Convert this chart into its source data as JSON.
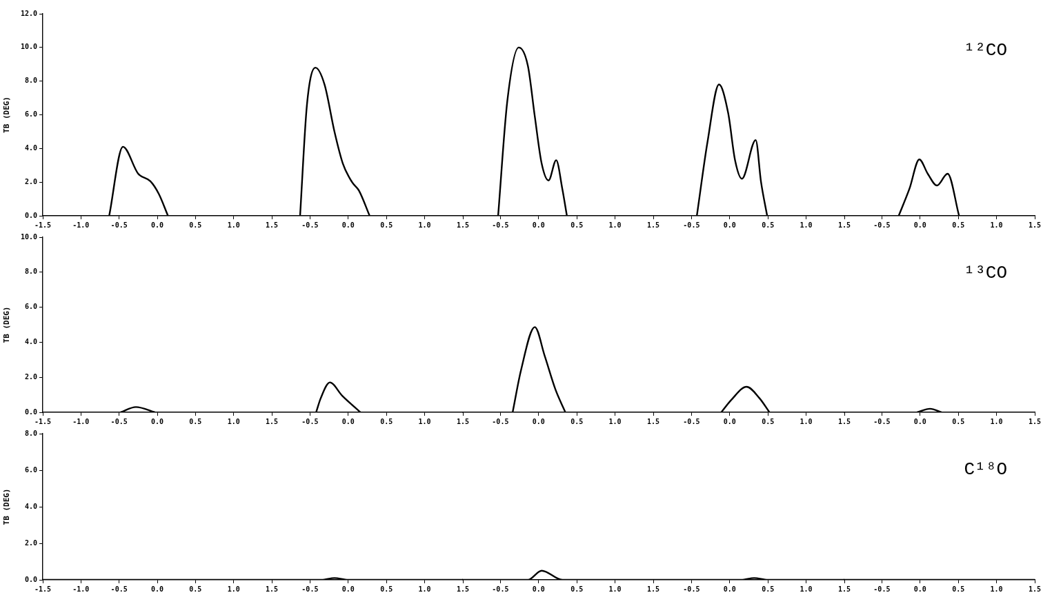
{
  "chart_data": [
    {
      "type": "line",
      "ylabel": "TB (DEG)",
      "xlim": [
        -1.5,
        1.5
      ],
      "ylim": [
        0,
        12
      ],
      "xticks": [
        {
          "value": -1.5,
          "label": "-1.5"
        },
        {
          "value": -1,
          "label": "-1.0"
        },
        {
          "value": -0.5,
          "label": "-0.5"
        },
        {
          "value": 0,
          "label": "0.0"
        },
        {
          "value": 0.5,
          "label": "0.5"
        },
        {
          "value": 1,
          "label": "1.0"
        },
        {
          "value": 1.5,
          "label": "1.5"
        }
      ],
      "yticks": [
        {
          "value": 0,
          "label": "0.0"
        },
        {
          "value": 2,
          "label": "2.0"
        },
        {
          "value": 4,
          "label": "4.0"
        },
        {
          "value": 6,
          "label": "6.0"
        },
        {
          "value": 8,
          "label": "8.0"
        },
        {
          "value": 10,
          "label": "10.0"
        },
        {
          "value": 12,
          "label": "12.0"
        }
      ],
      "series": [
        {
          "color": "#000000",
          "x": [
            -0.63,
            -0.45,
            -0.25,
            -0.09,
            0.02,
            0.14
          ],
          "values": [
            0,
            4.1,
            2.5,
            2.05,
            1.3,
            0
          ]
        }
      ]
    },
    {
      "type": "line",
      "tick_labels": "x",
      "xlim": [
        -1,
        1.5
      ],
      "ylim": [
        0,
        12
      ],
      "xticks": [
        {
          "value": -0.5,
          "label": "-0.5"
        },
        {
          "value": 0,
          "label": "0.0"
        },
        {
          "value": 0.5,
          "label": "0.5"
        },
        {
          "value": 1,
          "label": "1.0"
        },
        {
          "value": 1.5,
          "label": "1.5"
        }
      ],
      "series": [
        {
          "color": "#000000",
          "x": [
            -0.63,
            -0.54,
            -0.43,
            -0.31,
            -0.18,
            -0.07,
            0.05,
            0.14,
            0.28
          ],
          "values": [
            0,
            6.6,
            8.8,
            7.8,
            5.0,
            3.1,
            2.0,
            1.5,
            0
          ]
        }
      ]
    },
    {
      "type": "line",
      "tick_labels": "x",
      "xlim": [
        -1,
        1.5
      ],
      "ylim": [
        0,
        12
      ],
      "xticks": [
        {
          "value": -0.5,
          "label": "-0.5"
        },
        {
          "value": 0,
          "label": "0.0"
        },
        {
          "value": 0.5,
          "label": "0.5"
        },
        {
          "value": 1,
          "label": "1.0"
        },
        {
          "value": 1.5,
          "label": "1.5"
        }
      ],
      "series": [
        {
          "color": "#000000",
          "x": [
            -0.53,
            -0.41,
            -0.26,
            -0.14,
            -0.05,
            0.04,
            0.13,
            0.23,
            0.31,
            0.37
          ],
          "values": [
            0,
            6.8,
            10.0,
            8.9,
            5.9,
            3.1,
            2.1,
            3.3,
            1.6,
            0
          ]
        }
      ]
    },
    {
      "type": "line",
      "tick_labels": "x",
      "xlim": [
        -1,
        1.5
      ],
      "ylim": [
        0,
        12
      ],
      "xticks": [
        {
          "value": -0.5,
          "label": "-0.5"
        },
        {
          "value": 0,
          "label": "0.0"
        },
        {
          "value": 0.5,
          "label": "0.5"
        },
        {
          "value": 1,
          "label": "1.0"
        },
        {
          "value": 1.5,
          "label": "1.5"
        }
      ],
      "series": [
        {
          "color": "#000000",
          "x": [
            -0.43,
            -0.29,
            -0.14,
            -0.02,
            0.07,
            0.16,
            0.34,
            0.41,
            0.49
          ],
          "values": [
            0,
            4.4,
            7.8,
            6.1,
            3.3,
            2.2,
            4.5,
            2.0,
            0
          ]
        }
      ]
    },
    {
      "type": "line",
      "tick_labels": "x",
      "annotations": [
        "¹²CO"
      ],
      "xlim": [
        -1,
        1.5
      ],
      "ylim": [
        0,
        12
      ],
      "xticks": [
        {
          "value": -0.5,
          "label": "-0.5"
        },
        {
          "value": 0,
          "label": "0.0"
        },
        {
          "value": 0.5,
          "label": "0.5"
        },
        {
          "value": 1,
          "label": "1.0"
        },
        {
          "value": 1.5,
          "label": "1.5"
        }
      ],
      "series": [
        {
          "color": "#000000",
          "x": [
            -0.28,
            -0.14,
            -0.01,
            0.1,
            0.22,
            0.36,
            0.51
          ],
          "values": [
            0,
            1.6,
            3.35,
            2.5,
            1.8,
            2.5,
            0
          ]
        }
      ]
    },
    {
      "type": "line",
      "ylabel": "TB (DEG)",
      "xlim": [
        -1.5,
        1.5
      ],
      "ylim": [
        0,
        10
      ],
      "xticks": [
        {
          "value": -1.5,
          "label": "-1.5"
        },
        {
          "value": -1,
          "label": "-1.0"
        },
        {
          "value": -0.5,
          "label": "-0.5"
        },
        {
          "value": 0,
          "label": "0.0"
        },
        {
          "value": 0.5,
          "label": "0.5"
        },
        {
          "value": 1,
          "label": "1.0"
        },
        {
          "value": 1.5,
          "label": "1.5"
        }
      ],
      "yticks": [
        {
          "value": 0,
          "label": "0.0"
        },
        {
          "value": 2,
          "label": "2.0"
        },
        {
          "value": 4,
          "label": "4.0"
        },
        {
          "value": 6,
          "label": "6.0"
        },
        {
          "value": 8,
          "label": "8.0"
        },
        {
          "value": 10,
          "label": "10.0"
        }
      ],
      "series": [
        {
          "color": "#000000",
          "x": [
            -0.48,
            -0.28,
            -0.03
          ],
          "values": [
            0,
            0.3,
            0
          ]
        }
      ]
    },
    {
      "type": "line",
      "tick_labels": "x",
      "xlim": [
        -1,
        1.5
      ],
      "ylim": [
        0,
        10
      ],
      "xticks": [
        {
          "value": -0.5,
          "label": "-0.5"
        },
        {
          "value": 0,
          "label": "0.0"
        },
        {
          "value": 0.5,
          "label": "0.5"
        },
        {
          "value": 1,
          "label": "1.0"
        },
        {
          "value": 1.5,
          "label": "1.5"
        }
      ],
      "series": [
        {
          "color": "#000000",
          "x": [
            -0.42,
            -0.36,
            -0.24,
            -0.08,
            0.16
          ],
          "values": [
            0,
            0.8,
            1.7,
            0.95,
            0
          ]
        }
      ]
    },
    {
      "type": "line",
      "tick_labels": "x",
      "xlim": [
        -1,
        1.5
      ],
      "ylim": [
        0,
        10
      ],
      "xticks": [
        {
          "value": -0.5,
          "label": "-0.5"
        },
        {
          "value": 0,
          "label": "0.0"
        },
        {
          "value": 0.5,
          "label": "0.5"
        },
        {
          "value": 1,
          "label": "1.0"
        },
        {
          "value": 1.5,
          "label": "1.5"
        }
      ],
      "series": [
        {
          "color": "#000000",
          "x": [
            -0.34,
            -0.23,
            -0.05,
            0.08,
            0.22,
            0.35
          ],
          "values": [
            0,
            2.4,
            4.85,
            3.2,
            1.3,
            0
          ]
        }
      ]
    },
    {
      "type": "line",
      "tick_labels": "x",
      "xlim": [
        -1,
        1.5
      ],
      "ylim": [
        0,
        10
      ],
      "xticks": [
        {
          "value": -0.5,
          "label": "-0.5"
        },
        {
          "value": 0,
          "label": "0.0"
        },
        {
          "value": 0.5,
          "label": "0.5"
        },
        {
          "value": 1,
          "label": "1.0"
        },
        {
          "value": 1.5,
          "label": "1.5"
        }
      ],
      "series": [
        {
          "color": "#000000",
          "x": [
            -0.11,
            0.02,
            0.22,
            0.39,
            0.52
          ],
          "values": [
            0,
            0.7,
            1.45,
            0.8,
            0
          ]
        }
      ]
    },
    {
      "type": "line",
      "tick_labels": "x",
      "annotations": [
        "¹³CO"
      ],
      "xlim": [
        -1,
        1.5
      ],
      "ylim": [
        0,
        10
      ],
      "xticks": [
        {
          "value": -0.5,
          "label": "-0.5"
        },
        {
          "value": 0,
          "label": "0.0"
        },
        {
          "value": 0.5,
          "label": "0.5"
        },
        {
          "value": 1,
          "label": "1.0"
        },
        {
          "value": 1.5,
          "label": "1.5"
        }
      ],
      "series": [
        {
          "color": "#000000",
          "x": [
            -0.04,
            0.13,
            0.28
          ],
          "values": [
            0,
            0.2,
            0
          ]
        }
      ]
    },
    {
      "type": "line",
      "ylabel": "TB (DEG)",
      "xlim": [
        -1.5,
        1.5
      ],
      "ylim": [
        0,
        8
      ],
      "xticks": [
        {
          "value": -1.5,
          "label": "-1.5"
        },
        {
          "value": -1,
          "label": "-1.0"
        },
        {
          "value": -0.5,
          "label": "-0.5"
        },
        {
          "value": 0,
          "label": "0.0"
        },
        {
          "value": 0.5,
          "label": "0.5"
        },
        {
          "value": 1,
          "label": "1.0"
        },
        {
          "value": 1.5,
          "label": "1.5"
        }
      ],
      "yticks": [
        {
          "value": 0,
          "label": "0.0"
        },
        {
          "value": 2,
          "label": "2.0"
        },
        {
          "value": 4,
          "label": "4.0"
        },
        {
          "value": 6,
          "label": "6.0"
        },
        {
          "value": 8,
          "label": "8.0"
        }
      ],
      "series": [
        {
          "color": "#000000",
          "x": [
            -1.5,
            1.5
          ],
          "values": [
            0,
            0
          ]
        }
      ]
    },
    {
      "type": "line",
      "tick_labels": "x",
      "xlim": [
        -1,
        1.5
      ],
      "ylim": [
        0,
        8
      ],
      "xticks": [
        {
          "value": -0.5,
          "label": "-0.5"
        },
        {
          "value": 0,
          "label": "0.0"
        },
        {
          "value": 0.5,
          "label": "0.5"
        },
        {
          "value": 1,
          "label": "1.0"
        },
        {
          "value": 1.5,
          "label": "1.5"
        }
      ],
      "series": [
        {
          "color": "#000000",
          "x": [
            -1,
            -0.35,
            -0.18,
            0.0,
            1.5
          ],
          "values": [
            0,
            0,
            0.1,
            0,
            0
          ]
        }
      ]
    },
    {
      "type": "line",
      "tick_labels": "x",
      "xlim": [
        -1,
        1.5
      ],
      "ylim": [
        0,
        8
      ],
      "xticks": [
        {
          "value": -0.5,
          "label": "-0.5"
        },
        {
          "value": 0,
          "label": "0.0"
        },
        {
          "value": 0.5,
          "label": "0.5"
        },
        {
          "value": 1,
          "label": "1.0"
        },
        {
          "value": 1.5,
          "label": "1.5"
        }
      ],
      "series": [
        {
          "color": "#000000",
          "x": [
            -1,
            -0.14,
            0.04,
            0.31,
            1.5
          ],
          "values": [
            0,
            0,
            0.5,
            0,
            0
          ]
        }
      ]
    },
    {
      "type": "line",
      "tick_labels": "x",
      "xlim": [
        -1,
        1.5
      ],
      "ylim": [
        0,
        8
      ],
      "xticks": [
        {
          "value": -0.5,
          "label": "-0.5"
        },
        {
          "value": 0,
          "label": "0.0"
        },
        {
          "value": 0.5,
          "label": "0.5"
        },
        {
          "value": 1,
          "label": "1.0"
        },
        {
          "value": 1.5,
          "label": "1.5"
        }
      ],
      "series": [
        {
          "color": "#000000",
          "x": [
            -1,
            0.15,
            0.32,
            0.5,
            1.5
          ],
          "values": [
            0,
            0,
            0.1,
            0,
            0
          ]
        }
      ]
    },
    {
      "type": "line",
      "tick_labels": "x",
      "annotations": [
        "C¹⁸O"
      ],
      "xlim": [
        -1,
        1.5
      ],
      "ylim": [
        0,
        8
      ],
      "xticks": [
        {
          "value": -0.5,
          "label": "-0.5"
        },
        {
          "value": 0,
          "label": "0.0"
        },
        {
          "value": 0.5,
          "label": "0.5"
        },
        {
          "value": 1,
          "label": "1.0"
        },
        {
          "value": 1.5,
          "label": "1.5"
        }
      ],
      "series": [
        {
          "color": "#000000",
          "x": [
            -1,
            1.5
          ],
          "values": [
            0,
            0
          ]
        }
      ]
    }
  ]
}
